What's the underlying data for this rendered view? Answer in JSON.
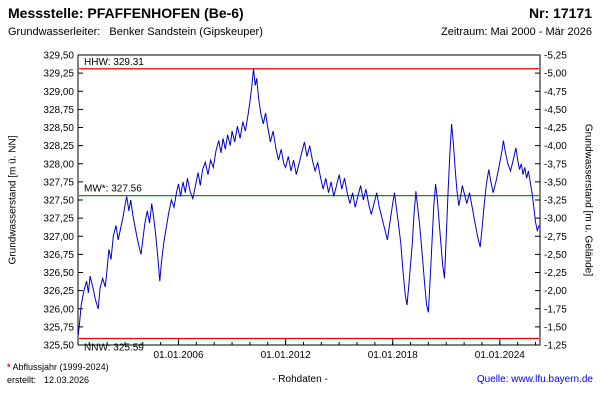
{
  "header": {
    "title": "Messstelle: PFAFFENHOFEN (Be-6)",
    "number": "Nr: 17171",
    "aquifer_label": "Grundwasserleiter:",
    "aquifer_value": "Benker Sandstein (Gipskeuper)",
    "period": "Zeitraum: Mai 2000 - Mär 2026"
  },
  "axes": {
    "left_title": "Grundwasserstand [m ü. NN]",
    "right_title": "Grundwasserstand [m u. Gelände]"
  },
  "footer": {
    "footnote_star": "*",
    "footnote_text": " Abflussjahr (1999-2024)",
    "created_label": "erstellt:",
    "created_date": "12.03.2026",
    "center_note": "- Rohdaten -",
    "source_label": "Quelle:",
    "source_url": "www.lfu.bayern.de"
  },
  "colors": {
    "series": "#0000cd",
    "hhw_nnw_line": "#ff0000",
    "mw_line": "#00a000",
    "frame": "#000000",
    "link": "#0000ff",
    "background": "#ffffff"
  },
  "chart_data": {
    "type": "line",
    "title": "Messstelle: PFAFFENHOFEN (Be-6), Nr: 17171",
    "xlabel": "",
    "ylabel_left": "Grundwasserstand [m ü. NN]",
    "ylabel_right": "Grundwasserstand [m u. Gelände]",
    "grid": false,
    "xlim": [
      2000.37,
      2026.25
    ],
    "ylim_left": [
      325.5,
      329.5
    ],
    "ytick_step": 0.25,
    "right_axis": {
      "bottom": -1.25,
      "top": -5.25,
      "step": 0.25
    },
    "xticks_major": [
      {
        "t": 2006.0,
        "label": "01.01.2006"
      },
      {
        "t": 2012.0,
        "label": "01.01.2012"
      },
      {
        "t": 2018.0,
        "label": "01.01.2018"
      },
      {
        "t": 2024.0,
        "label": "01.01.2024"
      }
    ],
    "xticks_minor_years": [
      2001,
      2002,
      2003,
      2004,
      2005,
      2006,
      2007,
      2008,
      2009,
      2010,
      2011,
      2012,
      2013,
      2014,
      2015,
      2016,
      2017,
      2018,
      2019,
      2020,
      2021,
      2022,
      2023,
      2024,
      2025,
      2026
    ],
    "reference_lines": [
      {
        "name": "hhw-line",
        "label": "HHW: 329.31",
        "value": 329.31,
        "color": "#ff0000",
        "label_position": "above"
      },
      {
        "name": "mw-line",
        "label": "MW*: 327.56",
        "value": 327.56,
        "color": "#00a000",
        "label_position": "above"
      },
      {
        "name": "nnw-line",
        "label": "NNW: 325.59",
        "value": 325.59,
        "color": "#ff0000",
        "label_position": "below"
      }
    ],
    "series": [
      {
        "name": "Grundwasserstand Rohdaten",
        "color": "#0000cd",
        "points": [
          [
            2000.37,
            325.62
          ],
          [
            2000.45,
            325.78
          ],
          [
            2000.55,
            326.05
          ],
          [
            2000.7,
            326.25
          ],
          [
            2000.85,
            326.38
          ],
          [
            2000.95,
            326.22
          ],
          [
            2001.05,
            326.45
          ],
          [
            2001.2,
            326.3
          ],
          [
            2001.35,
            326.12
          ],
          [
            2001.5,
            326.0
          ],
          [
            2001.6,
            326.28
          ],
          [
            2001.75,
            326.42
          ],
          [
            2001.9,
            326.3
          ],
          [
            2002.0,
            326.55
          ],
          [
            2002.1,
            326.82
          ],
          [
            2002.22,
            326.68
          ],
          [
            2002.35,
            327.0
          ],
          [
            2002.5,
            327.15
          ],
          [
            2002.62,
            326.95
          ],
          [
            2002.75,
            327.1
          ],
          [
            2002.9,
            327.28
          ],
          [
            2003.0,
            327.42
          ],
          [
            2003.1,
            327.55
          ],
          [
            2003.22,
            327.35
          ],
          [
            2003.32,
            327.5
          ],
          [
            2003.45,
            327.28
          ],
          [
            2003.6,
            327.08
          ],
          [
            2003.75,
            326.9
          ],
          [
            2003.9,
            326.75
          ],
          [
            2004.0,
            326.95
          ],
          [
            2004.12,
            327.18
          ],
          [
            2004.25,
            327.35
          ],
          [
            2004.38,
            327.18
          ],
          [
            2004.5,
            327.45
          ],
          [
            2004.6,
            327.28
          ],
          [
            2004.72,
            327.02
          ],
          [
            2004.85,
            326.68
          ],
          [
            2004.95,
            326.38
          ],
          [
            2005.05,
            326.65
          ],
          [
            2005.18,
            326.92
          ],
          [
            2005.3,
            327.1
          ],
          [
            2005.45,
            327.32
          ],
          [
            2005.6,
            327.5
          ],
          [
            2005.75,
            327.4
          ],
          [
            2005.9,
            327.62
          ],
          [
            2006.0,
            327.72
          ],
          [
            2006.12,
            327.55
          ],
          [
            2006.25,
            327.75
          ],
          [
            2006.38,
            327.6
          ],
          [
            2006.5,
            327.8
          ],
          [
            2006.65,
            327.62
          ],
          [
            2006.8,
            327.52
          ],
          [
            2006.95,
            327.7
          ],
          [
            2007.1,
            327.88
          ],
          [
            2007.22,
            327.7
          ],
          [
            2007.35,
            327.92
          ],
          [
            2007.5,
            328.02
          ],
          [
            2007.65,
            327.85
          ],
          [
            2007.8,
            328.05
          ],
          [
            2007.95,
            327.95
          ],
          [
            2008.1,
            328.18
          ],
          [
            2008.25,
            328.32
          ],
          [
            2008.38,
            328.15
          ],
          [
            2008.5,
            328.35
          ],
          [
            2008.62,
            328.2
          ],
          [
            2008.75,
            328.4
          ],
          [
            2008.9,
            328.25
          ],
          [
            2009.0,
            328.45
          ],
          [
            2009.15,
            328.3
          ],
          [
            2009.3,
            328.52
          ],
          [
            2009.45,
            328.35
          ],
          [
            2009.6,
            328.58
          ],
          [
            2009.75,
            328.45
          ],
          [
            2009.9,
            328.68
          ],
          [
            2010.0,
            328.85
          ],
          [
            2010.1,
            329.05
          ],
          [
            2010.2,
            329.31
          ],
          [
            2010.3,
            329.08
          ],
          [
            2010.38,
            329.18
          ],
          [
            2010.5,
            328.88
          ],
          [
            2010.62,
            328.68
          ],
          [
            2010.75,
            328.55
          ],
          [
            2010.88,
            328.7
          ],
          [
            2011.0,
            328.5
          ],
          [
            2011.15,
            328.3
          ],
          [
            2011.3,
            328.45
          ],
          [
            2011.45,
            328.22
          ],
          [
            2011.6,
            328.05
          ],
          [
            2011.75,
            328.2
          ],
          [
            2011.9,
            328.0
          ],
          [
            2012.0,
            327.95
          ],
          [
            2012.15,
            328.1
          ],
          [
            2012.3,
            327.9
          ],
          [
            2012.45,
            328.05
          ],
          [
            2012.6,
            327.85
          ],
          [
            2012.75,
            328.0
          ],
          [
            2012.9,
            328.15
          ],
          [
            2013.05,
            328.3
          ],
          [
            2013.2,
            328.1
          ],
          [
            2013.35,
            328.25
          ],
          [
            2013.5,
            328.05
          ],
          [
            2013.65,
            327.9
          ],
          [
            2013.8,
            328.02
          ],
          [
            2013.95,
            327.82
          ],
          [
            2014.1,
            327.65
          ],
          [
            2014.25,
            327.8
          ],
          [
            2014.4,
            327.6
          ],
          [
            2014.55,
            327.75
          ],
          [
            2014.7,
            327.55
          ],
          [
            2014.85,
            327.7
          ],
          [
            2015.0,
            327.85
          ],
          [
            2015.15,
            327.65
          ],
          [
            2015.3,
            327.8
          ],
          [
            2015.45,
            327.6
          ],
          [
            2015.6,
            327.45
          ],
          [
            2015.75,
            327.6
          ],
          [
            2015.9,
            327.4
          ],
          [
            2016.05,
            327.55
          ],
          [
            2016.2,
            327.7
          ],
          [
            2016.35,
            327.5
          ],
          [
            2016.5,
            327.65
          ],
          [
            2016.65,
            327.45
          ],
          [
            2016.8,
            327.3
          ],
          [
            2016.95,
            327.45
          ],
          [
            2017.1,
            327.6
          ],
          [
            2017.25,
            327.4
          ],
          [
            2017.4,
            327.25
          ],
          [
            2017.55,
            327.1
          ],
          [
            2017.7,
            326.95
          ],
          [
            2017.85,
            327.2
          ],
          [
            2018.0,
            327.45
          ],
          [
            2018.1,
            327.6
          ],
          [
            2018.2,
            327.4
          ],
          [
            2018.32,
            327.18
          ],
          [
            2018.45,
            326.9
          ],
          [
            2018.58,
            326.5
          ],
          [
            2018.7,
            326.2
          ],
          [
            2018.8,
            326.05
          ],
          [
            2018.9,
            326.32
          ],
          [
            2019.0,
            326.62
          ],
          [
            2019.1,
            326.92
          ],
          [
            2019.2,
            327.32
          ],
          [
            2019.3,
            327.62
          ],
          [
            2019.4,
            327.4
          ],
          [
            2019.5,
            327.18
          ],
          [
            2019.6,
            326.9
          ],
          [
            2019.7,
            326.6
          ],
          [
            2019.8,
            326.3
          ],
          [
            2019.9,
            326.05
          ],
          [
            2020.0,
            325.95
          ],
          [
            2020.1,
            326.42
          ],
          [
            2020.2,
            326.92
          ],
          [
            2020.3,
            327.42
          ],
          [
            2020.4,
            327.72
          ],
          [
            2020.5,
            327.5
          ],
          [
            2020.6,
            327.2
          ],
          [
            2020.7,
            326.9
          ],
          [
            2020.8,
            326.6
          ],
          [
            2020.9,
            326.42
          ],
          [
            2021.0,
            327.02
          ],
          [
            2021.1,
            327.62
          ],
          [
            2021.2,
            328.12
          ],
          [
            2021.3,
            328.55
          ],
          [
            2021.4,
            328.28
          ],
          [
            2021.5,
            327.92
          ],
          [
            2021.6,
            327.62
          ],
          [
            2021.7,
            327.42
          ],
          [
            2021.8,
            327.55
          ],
          [
            2021.9,
            327.7
          ],
          [
            2022.0,
            327.6
          ],
          [
            2022.15,
            327.45
          ],
          [
            2022.3,
            327.6
          ],
          [
            2022.45,
            327.4
          ],
          [
            2022.6,
            327.2
          ],
          [
            2022.75,
            327.0
          ],
          [
            2022.9,
            326.85
          ],
          [
            2023.0,
            327.1
          ],
          [
            2023.12,
            327.42
          ],
          [
            2023.25,
            327.72
          ],
          [
            2023.38,
            327.92
          ],
          [
            2023.5,
            327.75
          ],
          [
            2023.62,
            327.6
          ],
          [
            2023.78,
            327.75
          ],
          [
            2023.95,
            327.95
          ],
          [
            2024.1,
            328.15
          ],
          [
            2024.2,
            328.32
          ],
          [
            2024.32,
            328.15
          ],
          [
            2024.45,
            328.0
          ],
          [
            2024.6,
            327.9
          ],
          [
            2024.75,
            328.05
          ],
          [
            2024.9,
            328.22
          ],
          [
            2025.0,
            328.05
          ],
          [
            2025.1,
            327.92
          ],
          [
            2025.2,
            328.0
          ],
          [
            2025.3,
            327.85
          ],
          [
            2025.4,
            327.95
          ],
          [
            2025.5,
            327.8
          ],
          [
            2025.6,
            327.9
          ],
          [
            2025.7,
            327.75
          ],
          [
            2025.8,
            327.6
          ],
          [
            2025.9,
            327.4
          ],
          [
            2026.0,
            327.2
          ],
          [
            2026.1,
            327.08
          ],
          [
            2026.2,
            327.15
          ]
        ]
      }
    ]
  }
}
